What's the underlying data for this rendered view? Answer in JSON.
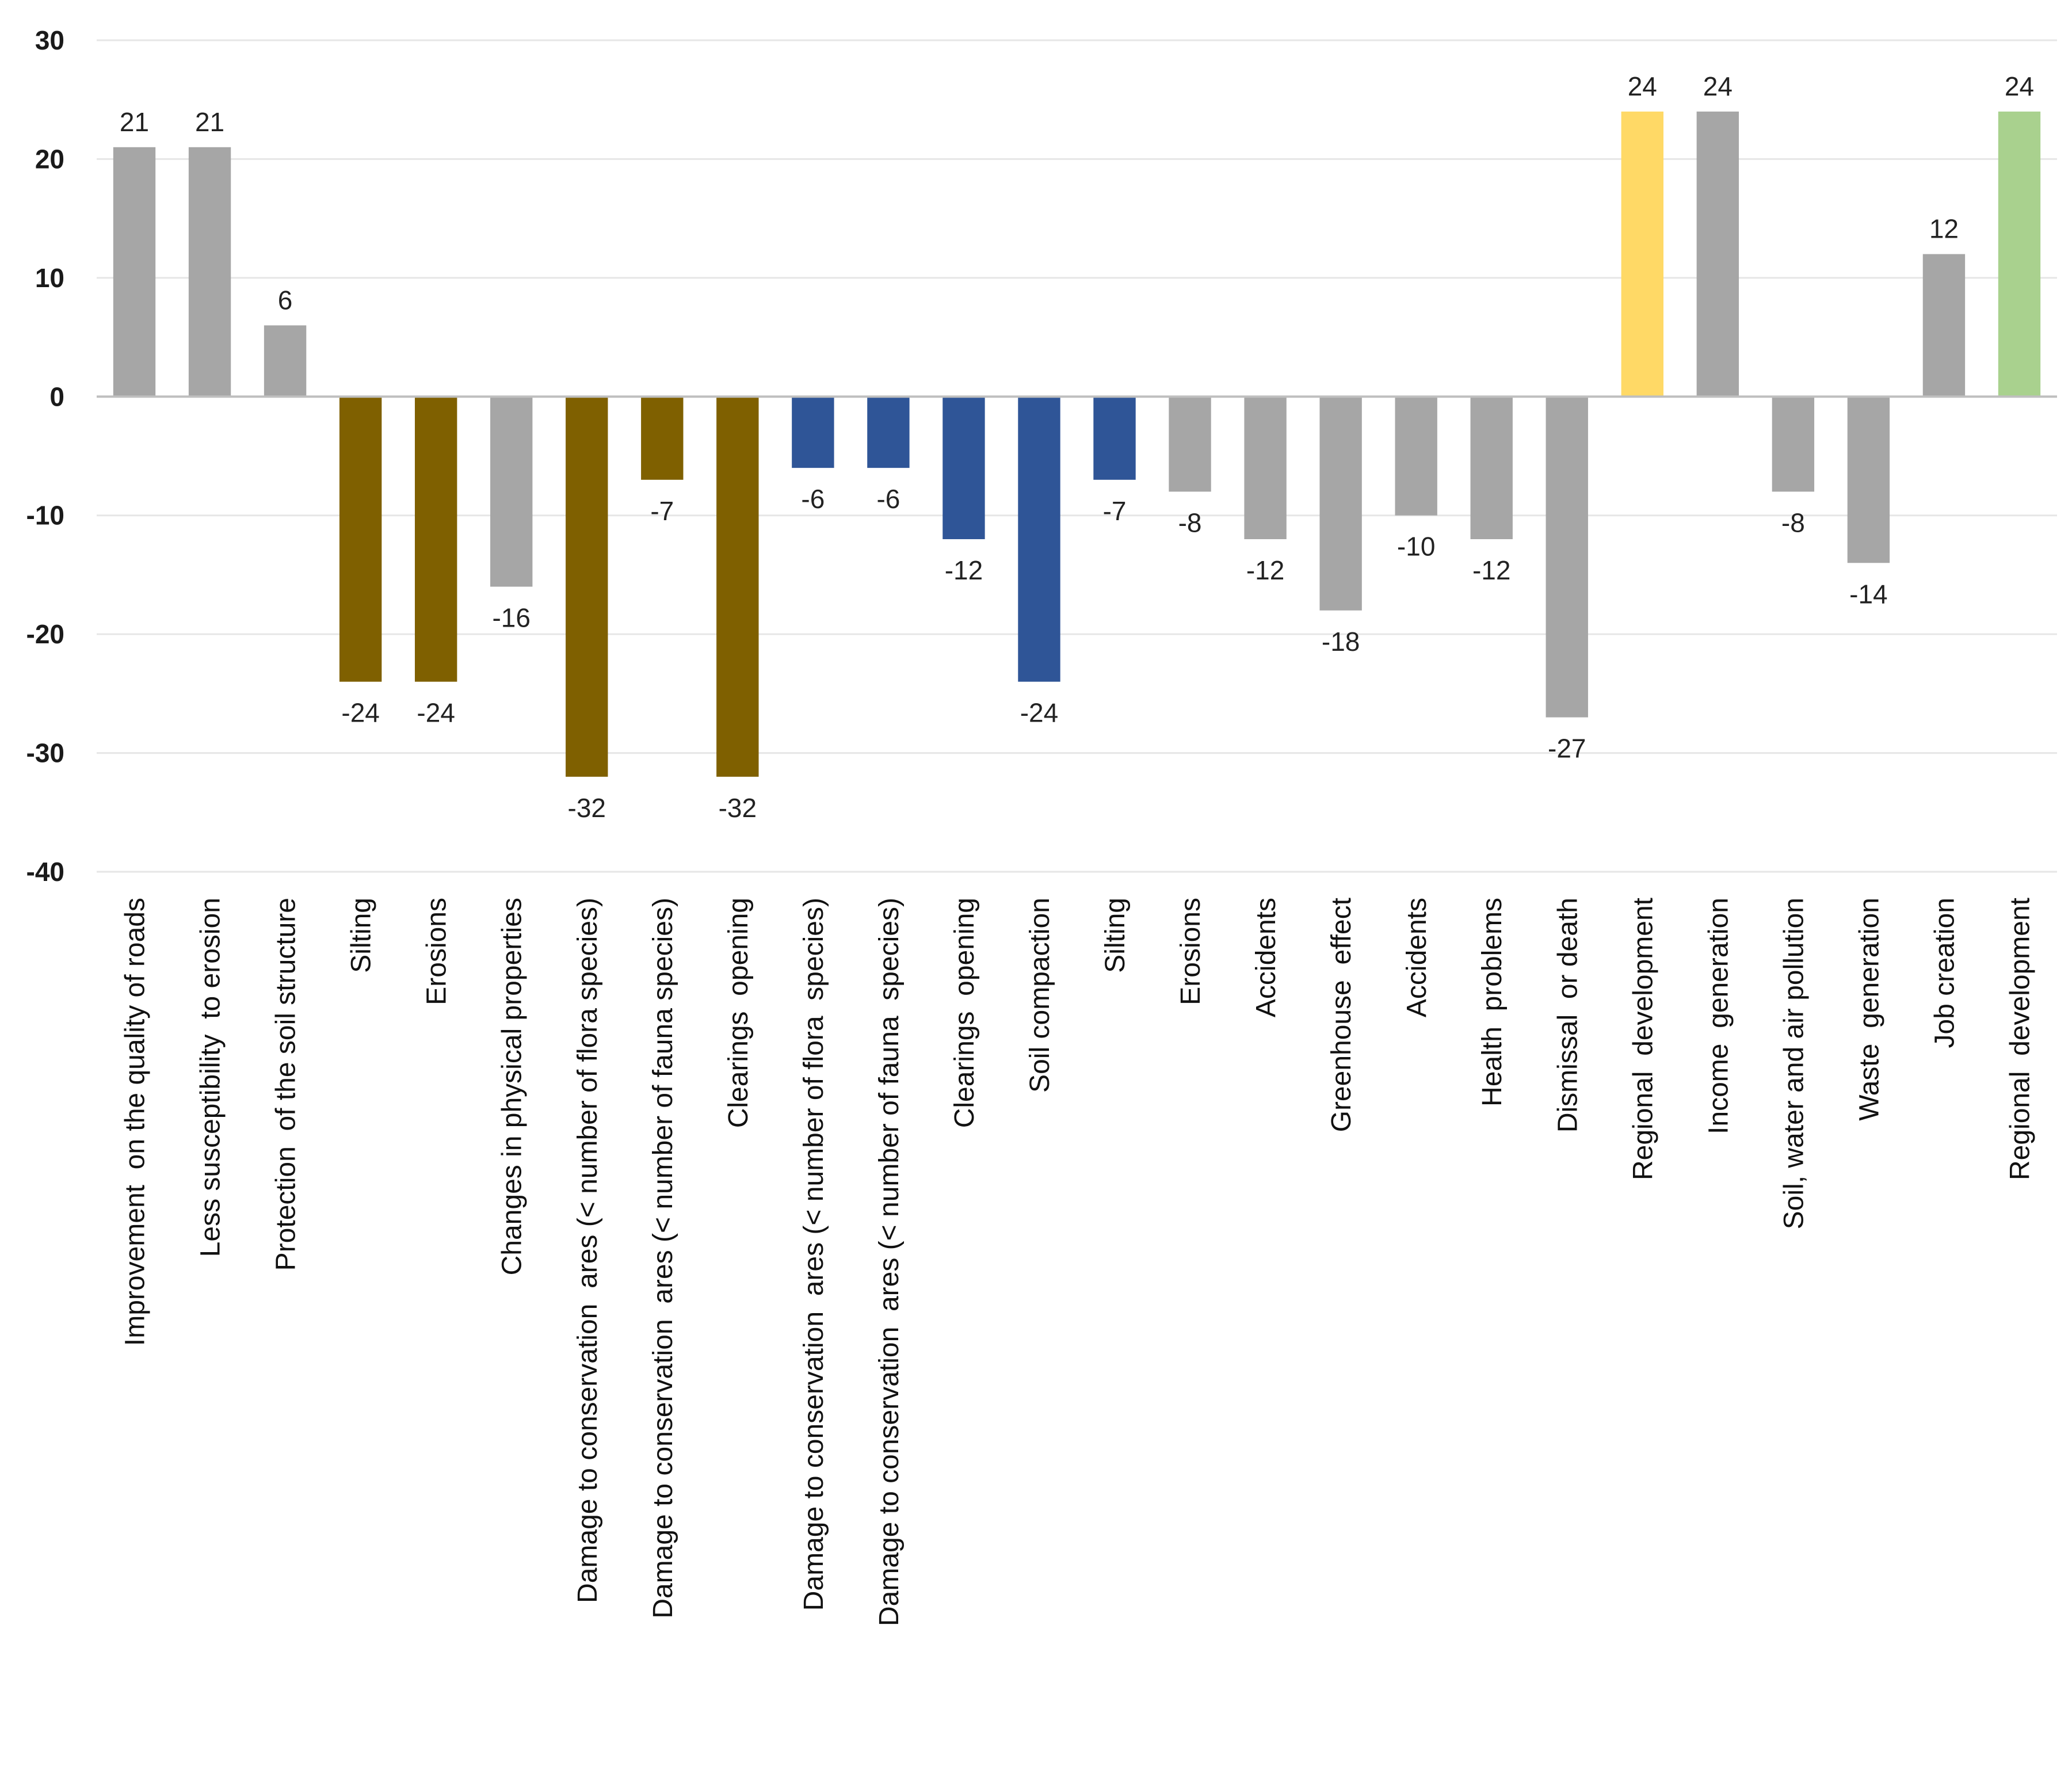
{
  "chart_data": {
    "type": "bar",
    "title": "",
    "xlabel": "",
    "ylabel": "",
    "ylim": [
      -40,
      30
    ],
    "yticks": [
      30,
      20,
      10,
      0,
      -10,
      -20,
      -30,
      -40
    ],
    "grid": true,
    "legend": "none",
    "data_labels": true,
    "categories": [
      "Improvement  on the quality of roads",
      "Less susceptibility  to erosion",
      "Protection  of the soil structure",
      "Silting",
      "Erosions",
      "Changes in physical properties",
      "Damage to conservation  ares (< number of flora species)",
      "Damage to conservation  ares (< number of fauna species)",
      "Clearings  opening",
      "Damage to conservation  ares (< number of flora  species)",
      "Damage to conservation  ares (< number of fauna  species)",
      "Clearings  opening",
      "Soil compaction",
      "Silting",
      "Erosions",
      "Accidents",
      "Greenhouse  effect",
      "Accidents",
      "Health  problems",
      "Dismissal  or death",
      "Regional  development",
      "Income  generation",
      "Soil, water and air pollution",
      "Waste  generation",
      "Job creation",
      "Regional  development"
    ],
    "values": [
      21,
      21,
      6,
      -24,
      -24,
      -16,
      -32,
      -7,
      -32,
      -6,
      -6,
      -12,
      -24,
      -7,
      -8,
      -12,
      -18,
      -10,
      -12,
      -27,
      24,
      24,
      -8,
      -14,
      12,
      24
    ],
    "colors": [
      "#a6a6a6",
      "#a6a6a6",
      "#a6a6a6",
      "#7f6000",
      "#7f6000",
      "#a6a6a6",
      "#7f6000",
      "#7f6000",
      "#7f6000",
      "#2f5597",
      "#2f5597",
      "#2f5597",
      "#2f5597",
      "#2f5597",
      "#a6a6a6",
      "#a6a6a6",
      "#a6a6a6",
      "#a6a6a6",
      "#a6a6a6",
      "#a6a6a6",
      "#ffd966",
      "#a6a6a6",
      "#a6a6a6",
      "#a6a6a6",
      "#a6a6a6",
      "#a9d18e"
    ]
  }
}
